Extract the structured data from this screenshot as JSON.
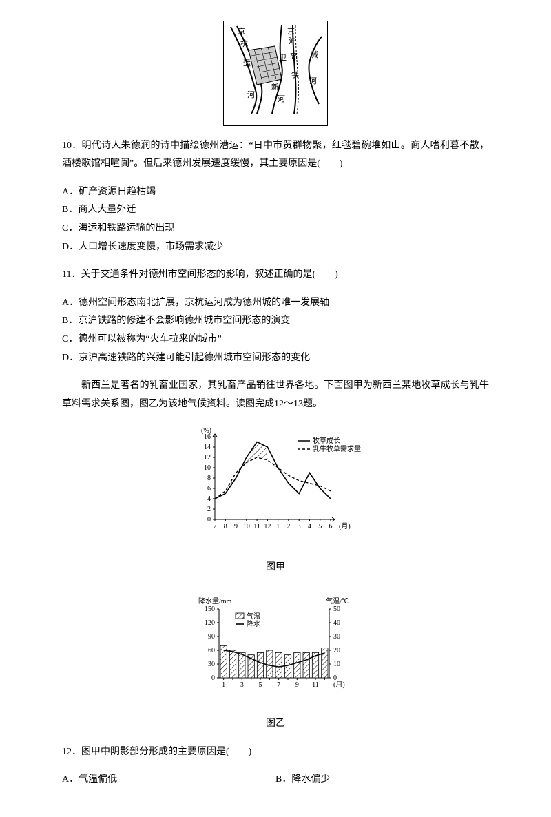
{
  "map": {
    "labels": {
      "kh": "京杭运河",
      "wei": "卫",
      "jh": "京沪高铁",
      "xin": "新",
      "jian": "减",
      "he": "河"
    },
    "stroke": "#000000",
    "fill_city": "#cccccc",
    "bg": "#ffffff"
  },
  "q10": {
    "stem": "10．明代诗人朱德润的诗中描绘德州漕运：“日中市贸群物聚，红毯碧碗堆如山。商人嗜利暮不散，酒楼歌馆相喧阗”。但后来德州发展速度缓慢，其主要原因是(　　)",
    "A": "A．矿产资源日趋枯竭",
    "B": "B．商人大量外迁",
    "C": "C．海运和铁路运输的出现",
    "D": "D．人口增长速度变慢，市场需求减少"
  },
  "q11": {
    "stem": "11．关于交通条件对德州市空间形态的影响，叙述正确的是(　　)",
    "A": "A．德州空间形态南北扩展，京杭运河成为德州城的唯一发展轴",
    "B": "B．京沪铁路的修建不会影响德州城市空间形态的演变",
    "C": "C．德州可以被称为“火车拉来的城市”",
    "D": "D．京沪高速铁路的兴建可能引起德州城市空间形态的变化"
  },
  "intro1": "新西兰是著名的乳畜业国家，其乳畜产品销往世界各地。下面图甲为新西兰某地牧草成长与乳牛草料需求关系图，图乙为该地气候资料。读图完成12～13题。",
  "chartA": {
    "caption": "图甲",
    "y_label": "(%)",
    "y_ticks": [
      "0",
      "2",
      "4",
      "6",
      "8",
      "10",
      "12",
      "14",
      "16"
    ],
    "x_ticks": [
      "7",
      "8",
      "9",
      "10",
      "11",
      "12",
      "1",
      "2",
      "3",
      "4",
      "5",
      "6"
    ],
    "x_unit": "(月)",
    "legend": {
      "grass": "牧草成长",
      "need": "乳牛牧草需求量"
    },
    "series_grass": [
      4,
      5,
      8,
      12,
      15,
      14,
      10,
      7,
      5,
      9,
      6,
      4
    ],
    "series_need": [
      4,
      5.5,
      9,
      11,
      12,
      11.5,
      10,
      8.5,
      7.5,
      7,
      6.5,
      5.5
    ],
    "line_color": "#000000",
    "grass_solid": true,
    "need_dash": "4,3",
    "hatch_color": "#000000",
    "bg": "#ffffff",
    "font_label": 10,
    "font_legend": 10
  },
  "chartB": {
    "caption": "图乙",
    "left_label": "降水量/mm",
    "left_ticks": [
      "0",
      "30",
      "60",
      "90",
      "120",
      "150"
    ],
    "right_label": "气温/℃",
    "right_ticks": [
      "0",
      "10",
      "20",
      "30",
      "40",
      "50"
    ],
    "x_ticks": [
      "1",
      "3",
      "5",
      "7",
      "9",
      "11"
    ],
    "x_unit": "(月)",
    "legend_temp": "气温",
    "legend_rain": "降水",
    "temp_values": [
      20,
      19,
      17,
      14,
      11,
      9,
      8,
      9,
      11,
      13,
      16,
      18
    ],
    "rain_values": [
      70,
      60,
      55,
      50,
      55,
      60,
      55,
      50,
      55,
      55,
      55,
      65
    ],
    "bar_fill": "#ffffff",
    "hatch_color": "#000000",
    "line_color": "#000000",
    "axis_color": "#000000",
    "bg": "#ffffff",
    "font_label": 10
  },
  "q12": {
    "stem": "12．图甲中阴影部分形成的主要原因是(　　)",
    "A": "A．气温偏低",
    "B": "B．降水偏少"
  }
}
